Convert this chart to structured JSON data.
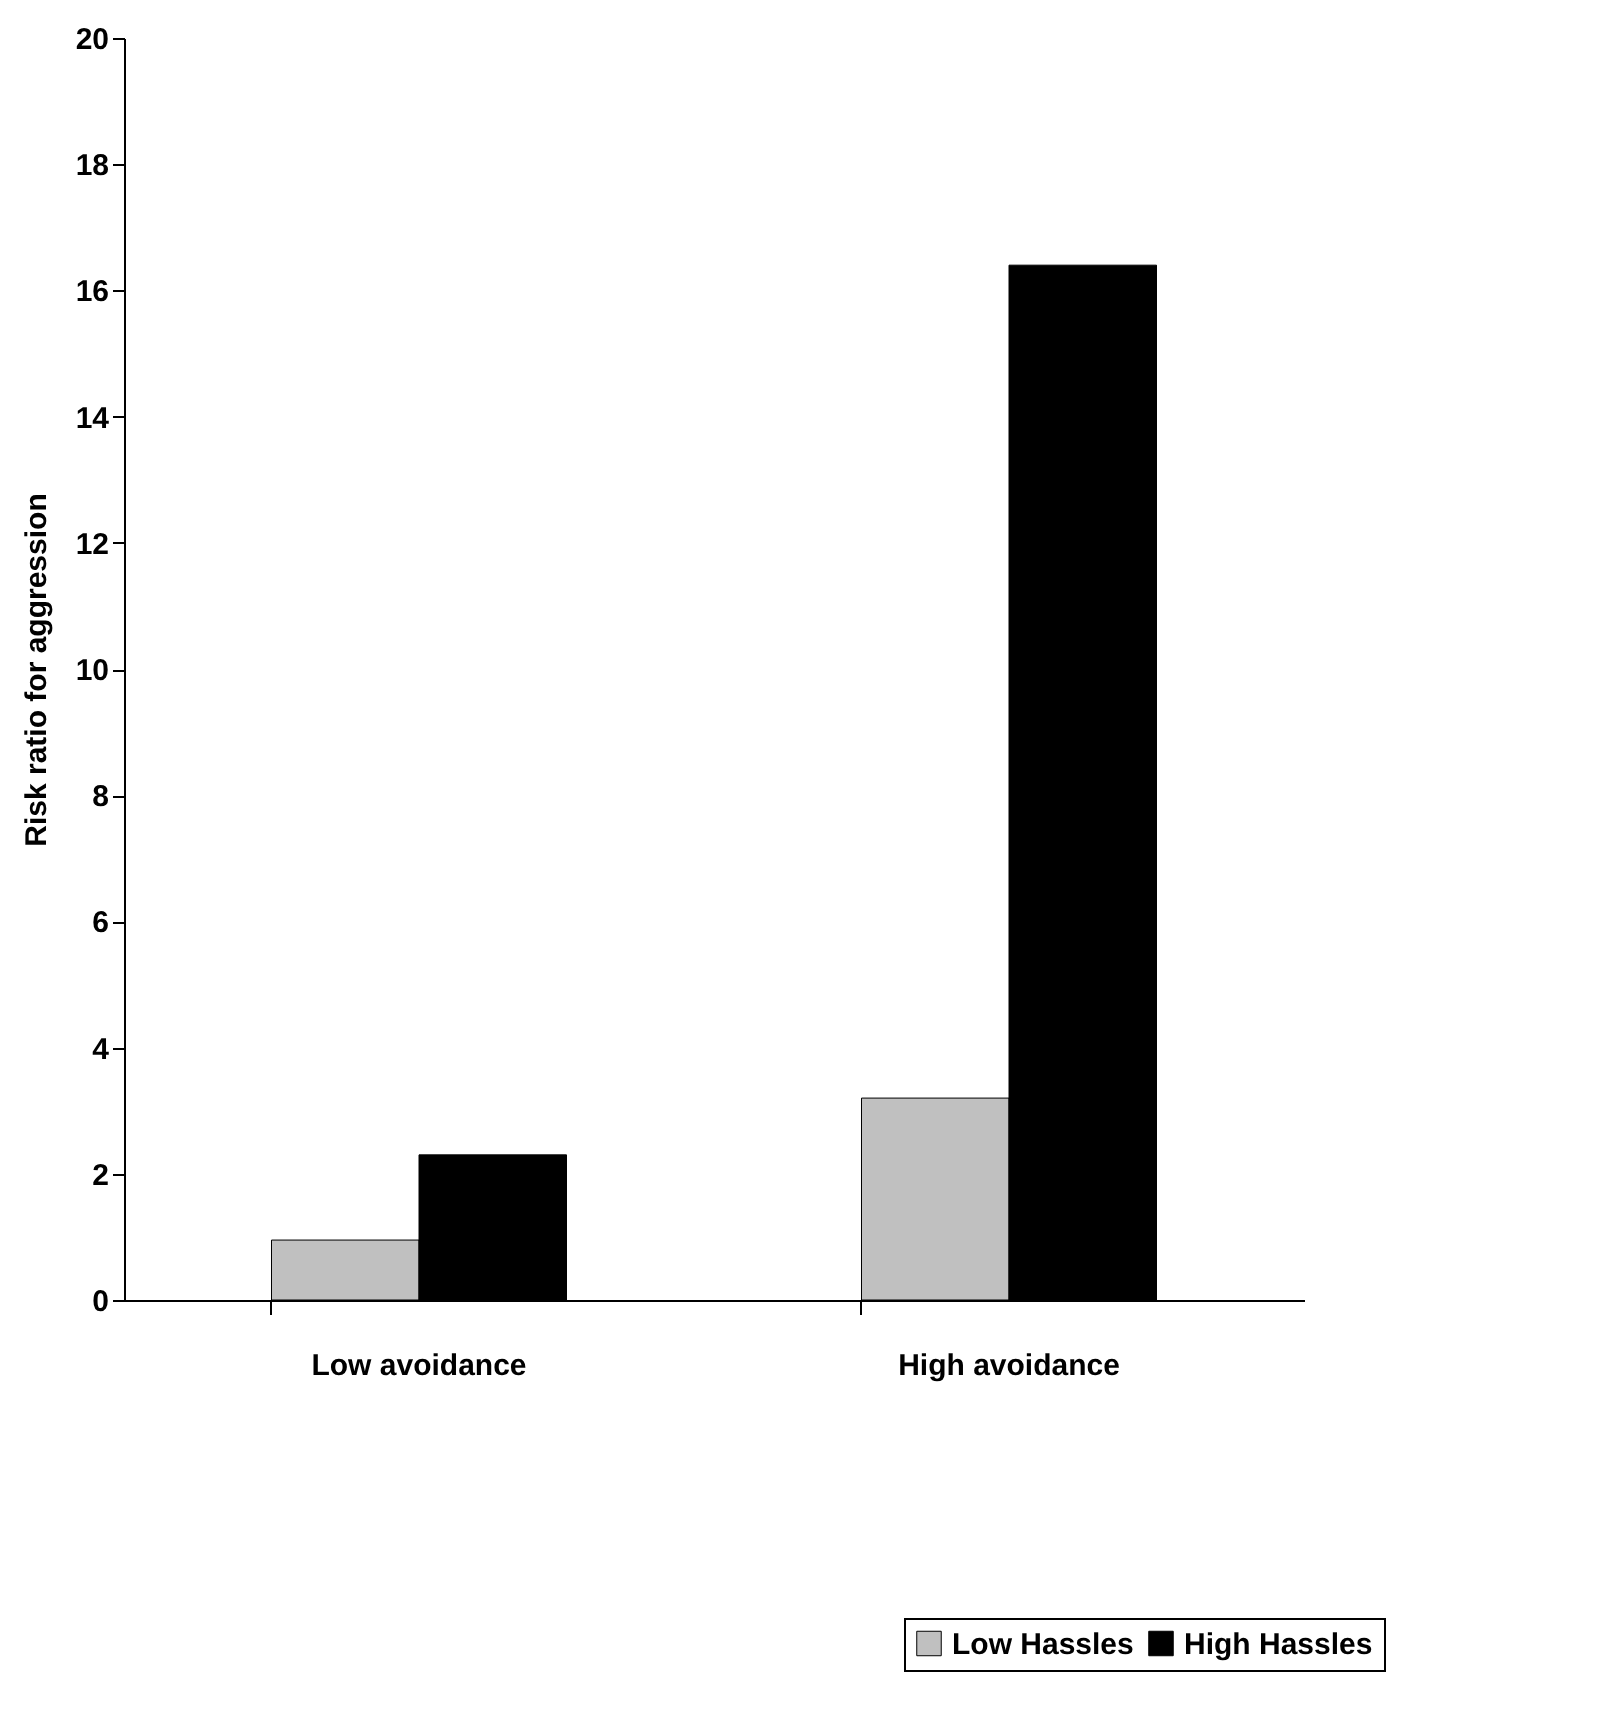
{
  "chart_data": {
    "type": "bar",
    "ylabel": "Risk ratio for aggression",
    "categories": [
      "Low avoidance",
      "High avoidance"
    ],
    "series": [
      {
        "name": "Low Hassles",
        "color": "#c0c0c0",
        "values": [
          0.95,
          3.2
        ]
      },
      {
        "name": "High Hassles",
        "color": "#000000",
        "values": [
          2.3,
          16.4
        ]
      }
    ],
    "ylim": [
      0,
      20
    ],
    "yticks": [
      0,
      2,
      4,
      6,
      8,
      10,
      12,
      14,
      16,
      18,
      20
    ],
    "grid": false,
    "legend": "bottom right"
  }
}
